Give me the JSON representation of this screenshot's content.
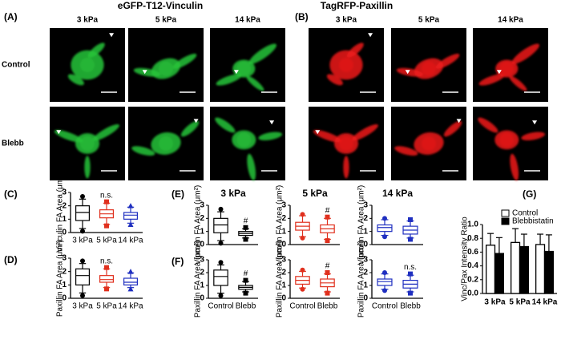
{
  "figure": {
    "panel_a": {
      "label": "(A)",
      "title": "eGFP-T12-Vinculin",
      "columns": [
        "3 kPa",
        "5 kPa",
        "14 kPa"
      ],
      "rows": [
        "Control",
        "Blebb"
      ]
    },
    "panel_b": {
      "label": "(B)",
      "title": "TagRFP-Paxillin",
      "columns": [
        "3 kPa",
        "5 kPa",
        "14 kPa"
      ]
    }
  },
  "chart_data": [
    {
      "type": "box",
      "panel": "(C)",
      "ylabel": "Vinculin FA Area (μm²)",
      "categories": [
        "3 kPa",
        "5 kPa",
        "14 kPa"
      ],
      "colors": [
        "#000000",
        "#e0301e",
        "#1f2fc0"
      ],
      "markers": [
        "circle",
        "square",
        "triangle"
      ],
      "annotation": "n.s.",
      "ylim": [
        0,
        3
      ],
      "yticks": [
        0,
        1,
        2,
        3
      ],
      "boxes": [
        {
          "whislo": 0.3,
          "q1": 0.9,
          "med": 1.5,
          "q3": 2.0,
          "whishi": 2.5,
          "fliers": [
            0.1,
            2.7
          ]
        },
        {
          "whislo": 0.6,
          "q1": 1.1,
          "med": 1.4,
          "q3": 1.7,
          "whishi": 2.2,
          "fliers": [
            0.5,
            2.3
          ]
        },
        {
          "whislo": 0.7,
          "q1": 1.0,
          "med": 1.3,
          "q3": 1.5,
          "whishi": 1.9,
          "fliers": [
            0.6,
            2.0
          ]
        }
      ]
    },
    {
      "type": "box",
      "panel": "(D)",
      "ylabel": "Paxillin FA Area (μm²)",
      "categories": [
        "3 kPa",
        "5 kPa",
        "14 kPa"
      ],
      "colors": [
        "#000000",
        "#e0301e",
        "#1f2fc0"
      ],
      "markers": [
        "circle",
        "square",
        "triangle"
      ],
      "annotation": "n.s.",
      "ylim": [
        0,
        3
      ],
      "yticks": [
        0,
        1,
        2,
        3
      ],
      "boxes": [
        {
          "whislo": 0.4,
          "q1": 1.0,
          "med": 1.7,
          "q3": 2.2,
          "whishi": 2.6,
          "fliers": [
            0.2,
            2.8
          ]
        },
        {
          "whislo": 0.8,
          "q1": 1.2,
          "med": 1.4,
          "q3": 1.7,
          "whishi": 2.2,
          "fliers": [
            0.7,
            2.3
          ]
        },
        {
          "whislo": 0.8,
          "q1": 1.0,
          "med": 1.2,
          "q3": 1.5,
          "whishi": 1.9,
          "fliers": [
            0.7,
            2.0
          ]
        }
      ]
    },
    {
      "type": "box",
      "panel": "(E)",
      "title": "3 kPa",
      "title_color": "#000000",
      "ylabel": "Vinculin FA Area (μm²)",
      "categories": [
        null,
        null
      ],
      "colors": [
        "#000000",
        "#000000"
      ],
      "markers": [
        "circle",
        "square"
      ],
      "annotation": "#",
      "ylim": [
        0,
        3
      ],
      "yticks": [
        0,
        1,
        2,
        3
      ],
      "boxes": [
        {
          "whislo": 0.3,
          "q1": 0.9,
          "med": 1.5,
          "q3": 2.0,
          "whishi": 2.5,
          "fliers": [
            0.1,
            2.7
          ]
        },
        {
          "whislo": 0.5,
          "q1": 0.7,
          "med": 0.85,
          "q3": 1.0,
          "whishi": 1.2,
          "fliers": [
            0.4,
            1.3
          ]
        }
      ]
    },
    {
      "type": "box",
      "title": "5 kPa",
      "title_color": "#e0301e",
      "ylabel": "Vinculin FA Area (μm²)",
      "categories": [
        null,
        null
      ],
      "colors": [
        "#e0301e",
        "#e0301e"
      ],
      "markers": [
        "circle",
        "square"
      ],
      "annotation": "#",
      "ylim": [
        0,
        3
      ],
      "yticks": [
        0,
        1,
        2,
        3
      ],
      "boxes": [
        {
          "whislo": 0.6,
          "q1": 1.1,
          "med": 1.4,
          "q3": 1.7,
          "whishi": 2.2,
          "fliers": [
            0.5,
            2.3
          ]
        },
        {
          "whislo": 0.4,
          "q1": 0.9,
          "med": 1.2,
          "q3": 1.5,
          "whishi": 2.0,
          "fliers": [
            0.3,
            2.1
          ]
        }
      ]
    },
    {
      "type": "box",
      "title": "14 kPa",
      "title_color": "#1f2fc0",
      "ylabel": "Vinculin FA Area (μm²)",
      "categories": [
        null,
        null
      ],
      "colors": [
        "#1f2fc0",
        "#1f2fc0"
      ],
      "markers": [
        "circle",
        "square"
      ],
      "ylim": [
        0,
        3
      ],
      "yticks": [
        0,
        1,
        2,
        3
      ],
      "boxes": [
        {
          "whislo": 0.7,
          "q1": 1.0,
          "med": 1.3,
          "q3": 1.5,
          "whishi": 1.9,
          "fliers": [
            0.6,
            2.0
          ]
        },
        {
          "whislo": 0.5,
          "q1": 0.8,
          "med": 1.1,
          "q3": 1.4,
          "whishi": 1.8,
          "fliers": [
            0.4,
            1.9
          ]
        }
      ]
    },
    {
      "type": "box",
      "panel": "(F)",
      "ylabel": "Paxillin FA Area (μm²)",
      "categories": [
        "Control",
        "Blebb"
      ],
      "colors": [
        "#000000",
        "#000000"
      ],
      "markers": [
        "circle",
        "square"
      ],
      "annotation": "#",
      "ylim": [
        0,
        3
      ],
      "yticks": [
        0,
        1,
        2,
        3
      ],
      "boxes": [
        {
          "whislo": 0.4,
          "q1": 1.0,
          "med": 1.7,
          "q3": 2.2,
          "whishi": 2.6,
          "fliers": [
            0.2,
            2.8
          ]
        },
        {
          "whislo": 0.5,
          "q1": 0.7,
          "med": 0.85,
          "q3": 1.0,
          "whishi": 1.3,
          "fliers": [
            0.4,
            1.4
          ]
        }
      ]
    },
    {
      "type": "box",
      "ylabel": "Paxillin FA Area (μm²)",
      "categories": [
        "Control",
        "Blebb"
      ],
      "colors": [
        "#e0301e",
        "#e0301e"
      ],
      "markers": [
        "circle",
        "square"
      ],
      "annotation": "#",
      "ylim": [
        0,
        3
      ],
      "yticks": [
        0,
        1,
        2,
        3
      ],
      "boxes": [
        {
          "whislo": 0.8,
          "q1": 1.1,
          "med": 1.4,
          "q3": 1.7,
          "whishi": 2.1,
          "fliers": [
            0.7,
            2.2
          ]
        },
        {
          "whislo": 0.5,
          "q1": 0.9,
          "med": 1.2,
          "q3": 1.5,
          "whishi": 1.9,
          "fliers": [
            0.4,
            2.0
          ]
        }
      ]
    },
    {
      "type": "box",
      "ylabel": "Paxillin FA Area (μm²)",
      "categories": [
        "Control",
        "Blebb"
      ],
      "colors": [
        "#1f2fc0",
        "#1f2fc0"
      ],
      "markers": [
        "circle",
        "square"
      ],
      "annotation": "n.s.",
      "ylim": [
        0,
        3
      ],
      "yticks": [
        0,
        1,
        2,
        3
      ],
      "boxes": [
        {
          "whislo": 0.7,
          "q1": 1.0,
          "med": 1.3,
          "q3": 1.5,
          "whishi": 1.9,
          "fliers": [
            0.6,
            2.0
          ]
        },
        {
          "whislo": 0.5,
          "q1": 0.8,
          "med": 1.1,
          "q3": 1.4,
          "whishi": 1.8,
          "fliers": [
            0.4,
            1.9
          ]
        }
      ]
    },
    {
      "type": "bar",
      "panel": "(G)",
      "ylabel": "Vinc/Pax Intensity Ratio",
      "categories": [
        "3 kPa",
        "5 kPa",
        "14 kPa"
      ],
      "legend": "top",
      "ylim": [
        0,
        1.0
      ],
      "yticks": [
        {
          "value": 0,
          "label": "0.0"
        },
        {
          "value": 0.2,
          "label": "0.2"
        },
        {
          "value": 0.4,
          "label": "0.4"
        },
        {
          "value": 0.6,
          "label": "0.6"
        },
        {
          "value": 0.8,
          "label": "0.8"
        },
        {
          "value": 1.0,
          "label": "1.0"
        }
      ],
      "series": [
        {
          "name": "Control",
          "color": "#ffffff",
          "values": [
            0.7,
            0.74,
            0.71
          ],
          "errors": [
            0.17,
            0.2,
            0.15
          ]
        },
        {
          "name": "Blebbistatin",
          "color": "#000000",
          "values": [
            0.58,
            0.68,
            0.61
          ],
          "errors": [
            0.23,
            0.18,
            0.24
          ]
        }
      ]
    }
  ]
}
